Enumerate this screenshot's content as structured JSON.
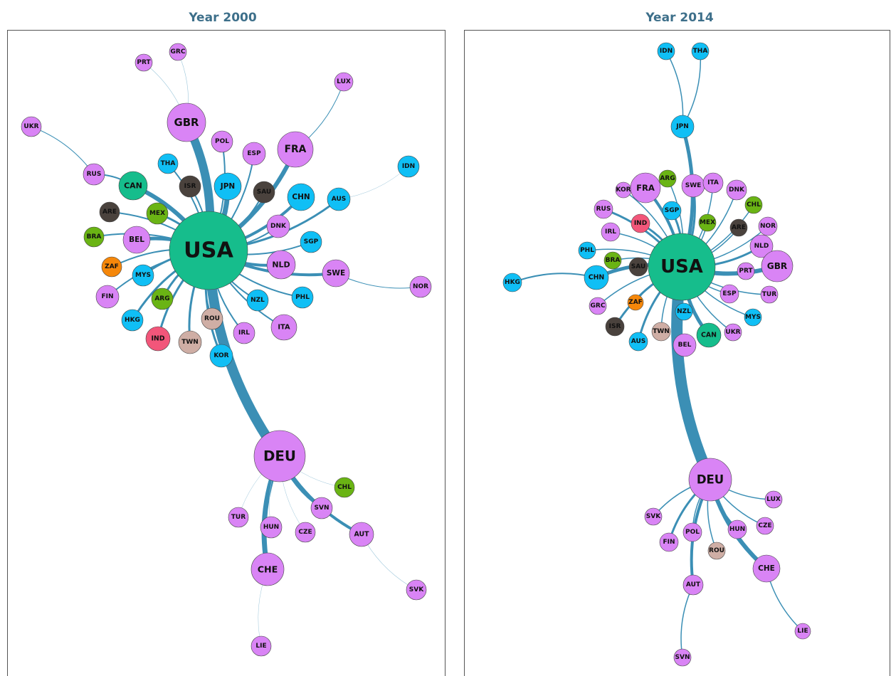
{
  "panels": [
    {
      "title": "Year 2000",
      "nodes": [
        {
          "label": "USA",
          "color": "#16bd8c"
        },
        {
          "label": "GBR",
          "color": "#d984f5"
        },
        {
          "label": "PRT",
          "color": "#d984f5"
        },
        {
          "label": "GRC",
          "color": "#d984f5"
        },
        {
          "label": "LUX",
          "color": "#d984f5"
        },
        {
          "label": "UKR",
          "color": "#d984f5"
        },
        {
          "label": "RUS",
          "color": "#d984f5"
        },
        {
          "label": "CAN",
          "color": "#16bd8c"
        },
        {
          "label": "THA",
          "color": "#10bff5"
        },
        {
          "label": "ISR",
          "color": "#4a423d"
        },
        {
          "label": "POL",
          "color": "#d984f5"
        },
        {
          "label": "JPN",
          "color": "#10bff5"
        },
        {
          "label": "ESP",
          "color": "#d984f5"
        },
        {
          "label": "FRA",
          "color": "#d984f5"
        },
        {
          "label": "SAU",
          "color": "#4a423d"
        },
        {
          "label": "CHN",
          "color": "#10bff5"
        },
        {
          "label": "AUS",
          "color": "#10bff5"
        },
        {
          "label": "IDN",
          "color": "#10bff5"
        },
        {
          "label": "ARE",
          "color": "#4a423d"
        },
        {
          "label": "MEX",
          "color": "#6ab414"
        },
        {
          "label": "BRA",
          "color": "#6ab414"
        },
        {
          "label": "BEL",
          "color": "#d984f5"
        },
        {
          "label": "DNK",
          "color": "#d984f5"
        },
        {
          "label": "SGP",
          "color": "#10bff5"
        },
        {
          "label": "ZAF",
          "color": "#f5870a"
        },
        {
          "label": "MYS",
          "color": "#10bff5"
        },
        {
          "label": "NLD",
          "color": "#d984f5"
        },
        {
          "label": "SWE",
          "color": "#d984f5"
        },
        {
          "label": "NOR",
          "color": "#d984f5"
        },
        {
          "label": "FIN",
          "color": "#d984f5"
        },
        {
          "label": "ARG",
          "color": "#6ab414"
        },
        {
          "label": "NZL",
          "color": "#10bff5"
        },
        {
          "label": "PHL",
          "color": "#10bff5"
        },
        {
          "label": "HKG",
          "color": "#10bff5"
        },
        {
          "label": "ROU",
          "color": "#cfaea5"
        },
        {
          "label": "IRL",
          "color": "#d984f5"
        },
        {
          "label": "ITA",
          "color": "#d984f5"
        },
        {
          "label": "IND",
          "color": "#f2567a"
        },
        {
          "label": "TWN",
          "color": "#cfaea5"
        },
        {
          "label": "KOR",
          "color": "#10bff5"
        },
        {
          "label": "DEU",
          "color": "#d984f5"
        },
        {
          "label": "CHL",
          "color": "#6ab414"
        },
        {
          "label": "TUR",
          "color": "#d984f5"
        },
        {
          "label": "SVN",
          "color": "#d984f5"
        },
        {
          "label": "HUN",
          "color": "#d984f5"
        },
        {
          "label": "CZE",
          "color": "#d984f5"
        },
        {
          "label": "AUT",
          "color": "#d984f5"
        },
        {
          "label": "CHE",
          "color": "#d984f5"
        },
        {
          "label": "SVK",
          "color": "#d984f5"
        },
        {
          "label": "LIE",
          "color": "#d984f5"
        }
      ],
      "edges": [
        [
          0,
          40
        ],
        [
          0,
          1
        ],
        [
          0,
          11
        ],
        [
          0,
          13
        ],
        [
          0,
          7
        ],
        [
          0,
          21
        ],
        [
          0,
          15
        ],
        [
          0,
          26
        ],
        [
          0,
          27
        ],
        [
          0,
          16
        ],
        [
          0,
          19
        ],
        [
          0,
          30
        ],
        [
          0,
          37
        ],
        [
          0,
          39
        ],
        [
          0,
          38
        ],
        [
          0,
          33
        ],
        [
          0,
          25
        ],
        [
          40,
          47
        ],
        [
          40,
          46
        ],
        [
          40,
          43
        ],
        [
          0,
          8
        ],
        [
          0,
          9
        ],
        [
          0,
          10
        ],
        [
          0,
          12
        ],
        [
          0,
          14
        ],
        [
          0,
          18
        ],
        [
          0,
          20
        ],
        [
          0,
          22
        ],
        [
          0,
          23
        ],
        [
          0,
          24
        ],
        [
          0,
          29
        ],
        [
          0,
          31
        ],
        [
          0,
          32
        ],
        [
          0,
          34
        ],
        [
          0,
          35
        ],
        [
          0,
          36
        ],
        [
          7,
          6
        ],
        [
          6,
          5
        ],
        [
          1,
          2
        ],
        [
          1,
          3
        ],
        [
          13,
          4
        ],
        [
          16,
          17
        ],
        [
          27,
          28
        ],
        [
          40,
          41
        ],
        [
          40,
          42
        ],
        [
          40,
          44
        ],
        [
          40,
          45
        ],
        [
          47,
          49
        ],
        [
          46,
          48
        ]
      ]
    },
    {
      "title": "Year 2014",
      "nodes": [
        {
          "label": "USA",
          "color": "#16bd8c"
        },
        {
          "label": "IDN",
          "color": "#10bff5"
        },
        {
          "label": "THA",
          "color": "#10bff5"
        },
        {
          "label": "JPN",
          "color": "#10bff5"
        },
        {
          "label": "KOR",
          "color": "#d984f5"
        },
        {
          "label": "FRA",
          "color": "#d984f5"
        },
        {
          "label": "ARG",
          "color": "#6ab414"
        },
        {
          "label": "SWE",
          "color": "#d984f5"
        },
        {
          "label": "ITA",
          "color": "#d984f5"
        },
        {
          "label": "DNK",
          "color": "#d984f5"
        },
        {
          "label": "CHL",
          "color": "#6ab414"
        },
        {
          "label": "RUS",
          "color": "#d984f5"
        },
        {
          "label": "SGP",
          "color": "#10bff5"
        },
        {
          "label": "MEX",
          "color": "#6ab414"
        },
        {
          "label": "ARE",
          "color": "#4a423d"
        },
        {
          "label": "NOR",
          "color": "#d984f5"
        },
        {
          "label": "IRL",
          "color": "#d984f5"
        },
        {
          "label": "IND",
          "color": "#f2567a"
        },
        {
          "label": "NLD",
          "color": "#d984f5"
        },
        {
          "label": "PHL",
          "color": "#10bff5"
        },
        {
          "label": "BRA",
          "color": "#6ab414"
        },
        {
          "label": "SAU",
          "color": "#4a423d"
        },
        {
          "label": "GBR",
          "color": "#d984f5"
        },
        {
          "label": "PRT",
          "color": "#d984f5"
        },
        {
          "label": "HKG",
          "color": "#10bff5"
        },
        {
          "label": "CHN",
          "color": "#10bff5"
        },
        {
          "label": "ESP",
          "color": "#d984f5"
        },
        {
          "label": "TUR",
          "color": "#d984f5"
        },
        {
          "label": "GRC",
          "color": "#d984f5"
        },
        {
          "label": "ZAF",
          "color": "#f5870a"
        },
        {
          "label": "NZL",
          "color": "#10bff5"
        },
        {
          "label": "MYS",
          "color": "#10bff5"
        },
        {
          "label": "ISR",
          "color": "#4a423d"
        },
        {
          "label": "TWN",
          "color": "#cfaea5"
        },
        {
          "label": "CAN",
          "color": "#16bd8c"
        },
        {
          "label": "UKR",
          "color": "#d984f5"
        },
        {
          "label": "AUS",
          "color": "#10bff5"
        },
        {
          "label": "BEL",
          "color": "#d984f5"
        },
        {
          "label": "DEU",
          "color": "#d984f5"
        },
        {
          "label": "LUX",
          "color": "#d984f5"
        },
        {
          "label": "SVK",
          "color": "#d984f5"
        },
        {
          "label": "CZE",
          "color": "#d984f5"
        },
        {
          "label": "HUN",
          "color": "#d984f5"
        },
        {
          "label": "POL",
          "color": "#d984f5"
        },
        {
          "label": "FIN",
          "color": "#d984f5"
        },
        {
          "label": "ROU",
          "color": "#cfaea5"
        },
        {
          "label": "CHE",
          "color": "#d984f5"
        },
        {
          "label": "AUT",
          "color": "#d984f5"
        },
        {
          "label": "LIE",
          "color": "#d984f5"
        },
        {
          "label": "SVN",
          "color": "#d984f5"
        }
      ],
      "edges": [
        [
          0,
          38
        ],
        [
          0,
          3
        ],
        [
          0,
          22
        ],
        [
          0,
          34
        ],
        [
          0,
          25
        ],
        [
          0,
          5
        ],
        [
          0,
          21
        ],
        [
          0,
          18
        ],
        [
          0,
          7
        ],
        [
          0,
          32
        ],
        [
          0,
          37
        ],
        [
          0,
          36
        ],
        [
          0,
          12
        ],
        [
          0,
          17
        ],
        [
          0,
          11
        ],
        [
          38,
          46
        ],
        [
          38,
          47
        ],
        [
          38,
          44
        ],
        [
          38,
          42
        ],
        [
          25,
          24
        ],
        [
          0,
          4
        ],
        [
          0,
          6
        ],
        [
          0,
          8
        ],
        [
          0,
          9
        ],
        [
          0,
          10
        ],
        [
          0,
          13
        ],
        [
          0,
          14
        ],
        [
          0,
          15
        ],
        [
          0,
          16
        ],
        [
          0,
          19
        ],
        [
          0,
          20
        ],
        [
          0,
          23
        ],
        [
          0,
          26
        ],
        [
          0,
          27
        ],
        [
          0,
          28
        ],
        [
          0,
          29
        ],
        [
          0,
          30
        ],
        [
          0,
          31
        ],
        [
          0,
          33
        ],
        [
          0,
          35
        ],
        [
          3,
          1
        ],
        [
          3,
          2
        ],
        [
          38,
          39
        ],
        [
          38,
          40
        ],
        [
          38,
          41
        ],
        [
          38,
          43
        ],
        [
          38,
          45
        ],
        [
          46,
          48
        ],
        [
          47,
          49
        ]
      ]
    }
  ]
}
